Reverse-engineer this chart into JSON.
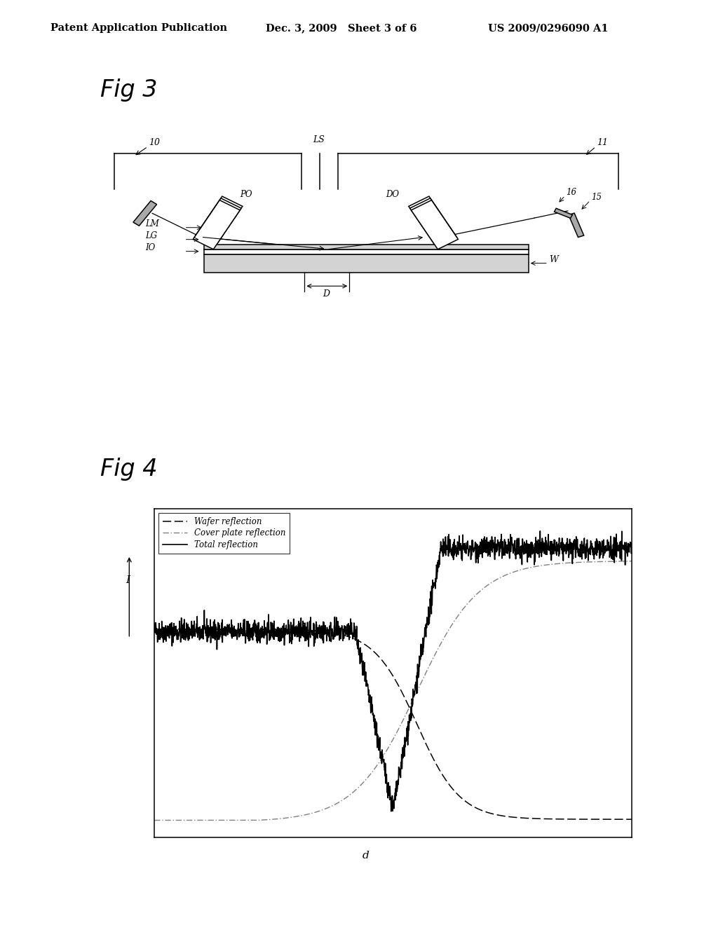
{
  "bg_color": "#ffffff",
  "header_left": "Patent Application Publication",
  "header_center": "Dec. 3, 2009   Sheet 3 of 6",
  "header_right": "US 2009/0296090 A1",
  "fig3_label": "Fig 3",
  "fig4_label": "Fig 4",
  "legend_entries": [
    "Wafer reflection",
    "Cover plate reflection",
    "Total reflection"
  ],
  "xlabel": "d",
  "ylabel": "I"
}
